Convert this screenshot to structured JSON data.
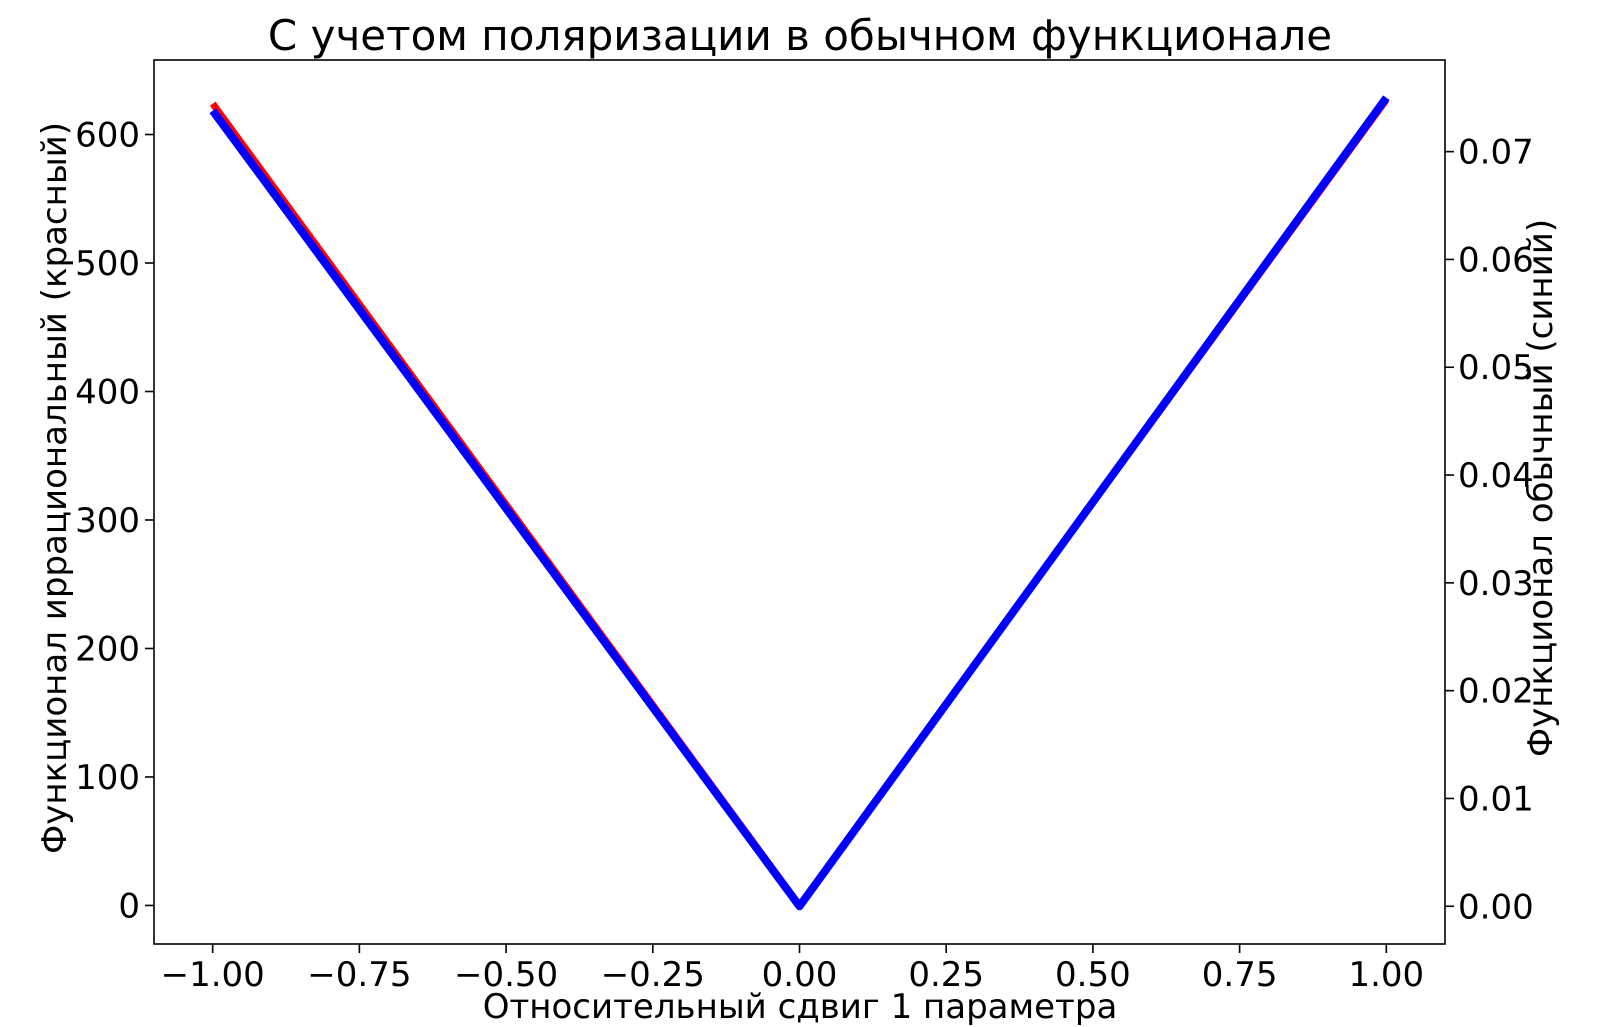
{
  "chart_data": {
    "type": "line",
    "title": "С учетом поляризации в обычном функционале",
    "xlabel": "Относительный сдвиг 1 параметра",
    "ylabel_left": "Функционал иррациональный (красный)",
    "ylabel_right": "Функционал обычный (синий)",
    "xlim": [
      -1.1,
      1.1
    ],
    "ylim_left": [
      -30,
      658
    ],
    "ylim_right": [
      -0.0035,
      0.0785
    ],
    "x_ticks": [
      -1.0,
      -0.75,
      -0.5,
      -0.25,
      0.0,
      0.25,
      0.5,
      0.75,
      1.0
    ],
    "x_tick_labels": [
      "−1.00",
      "−0.75",
      "−0.50",
      "−0.25",
      "0.00",
      "0.25",
      "0.50",
      "0.75",
      "1.00"
    ],
    "y_left_ticks": [
      0,
      100,
      200,
      300,
      400,
      500,
      600
    ],
    "y_left_tick_labels": [
      "0",
      "100",
      "200",
      "300",
      "400",
      "500",
      "600"
    ],
    "y_right_ticks": [
      0.0,
      0.01,
      0.02,
      0.03,
      0.04,
      0.05,
      0.06,
      0.07
    ],
    "y_right_tick_labels": [
      "0.00",
      "0.01",
      "0.02",
      "0.03",
      "0.04",
      "0.05",
      "0.06",
      "0.07"
    ],
    "grid": false,
    "legend": "none",
    "series": [
      {
        "axis": "left",
        "color": "#ff0000",
        "x": [
          -1.0,
          0.0,
          1.0
        ],
        "y": [
          624,
          0,
          627
        ]
      },
      {
        "axis": "right",
        "color": "#0000ff",
        "x": [
          -1.0,
          0.0,
          1.0
        ],
        "y": [
          0.0738,
          0.0,
          0.075
        ]
      }
    ]
  }
}
